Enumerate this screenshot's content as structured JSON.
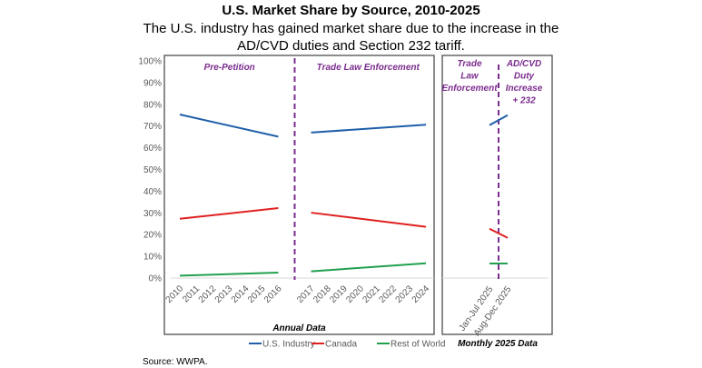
{
  "chart_data": {
    "type": "line",
    "title": "U.S. Market Share by Source, 2010-2025",
    "subtitle": "The U.S. industry has gained market share due to the increase in the AD/CVD duties and Section 232 tariff.",
    "subtitle_lines": [
      "The U.S. industry has gained market share due to the increase in the",
      "AD/CVD duties and Section 232 tariff."
    ],
    "ylabel": "",
    "ylim": [
      0,
      100
    ],
    "yticks": [
      "0%",
      "10%",
      "20%",
      "30%",
      "40%",
      "50%",
      "60%",
      "70%",
      "80%",
      "90%",
      "100%"
    ],
    "grid": false,
    "legend_position": "bottom",
    "source": "Source:  WWPA.",
    "panels": [
      {
        "name": "annual",
        "xlabel": "Annual Data",
        "categories": [
          "2010",
          "2011",
          "2012",
          "2013",
          "2014",
          "2015",
          "2016",
          "",
          "2017",
          "2018",
          "2019",
          "2020",
          "2021",
          "2022",
          "2023",
          "2024"
        ],
        "divider_after": "2016",
        "period_labels": [
          "Pre-Petition",
          "Trade Law Enforcement"
        ],
        "segments": [
          {
            "categories": [
              "2010",
              "2016"
            ],
            "series": [
              {
                "name": "U.S. Industry",
                "values": [
                  75.3,
                  65.1
                ]
              },
              {
                "name": "Canada",
                "values": [
                  27.3,
                  32.2
                ]
              },
              {
                "name": "Rest of World",
                "values": [
                  1.1,
                  2.5
                ]
              }
            ]
          },
          {
            "categories": [
              "2017",
              "2024"
            ],
            "series": [
              {
                "name": "U.S. Industry",
                "values": [
                  67.0,
                  70.6
                ]
              },
              {
                "name": "Canada",
                "values": [
                  30.1,
                  23.6
                ]
              },
              {
                "name": "Rest of World",
                "values": [
                  3.1,
                  6.8
                ]
              }
            ]
          }
        ]
      },
      {
        "name": "monthly",
        "xlabel": "Monthly 2025 Data",
        "categories": [
          "Jan-Jul 2025",
          "Aug-Dec 2025"
        ],
        "period_labels": [
          [
            "Trade",
            "Law",
            "Enforcement"
          ],
          [
            "AD/CVD",
            "Duty",
            "Increase",
            "+ 232"
          ]
        ],
        "series": [
          {
            "name": "U.S. Industry",
            "values": [
              70.4,
              75.0
            ]
          },
          {
            "name": "Canada",
            "values": [
              22.7,
              18.5
            ]
          },
          {
            "name": "Rest of World",
            "values": [
              6.7,
              6.7
            ]
          }
        ]
      }
    ],
    "legend": [
      {
        "name": "U.S. Industry",
        "color": "#1F5FA8"
      },
      {
        "name": "Canada",
        "color": "#E02020"
      },
      {
        "name": "Rest of World",
        "color": "#22A050"
      }
    ],
    "divider_color": "#7B2C8E"
  }
}
